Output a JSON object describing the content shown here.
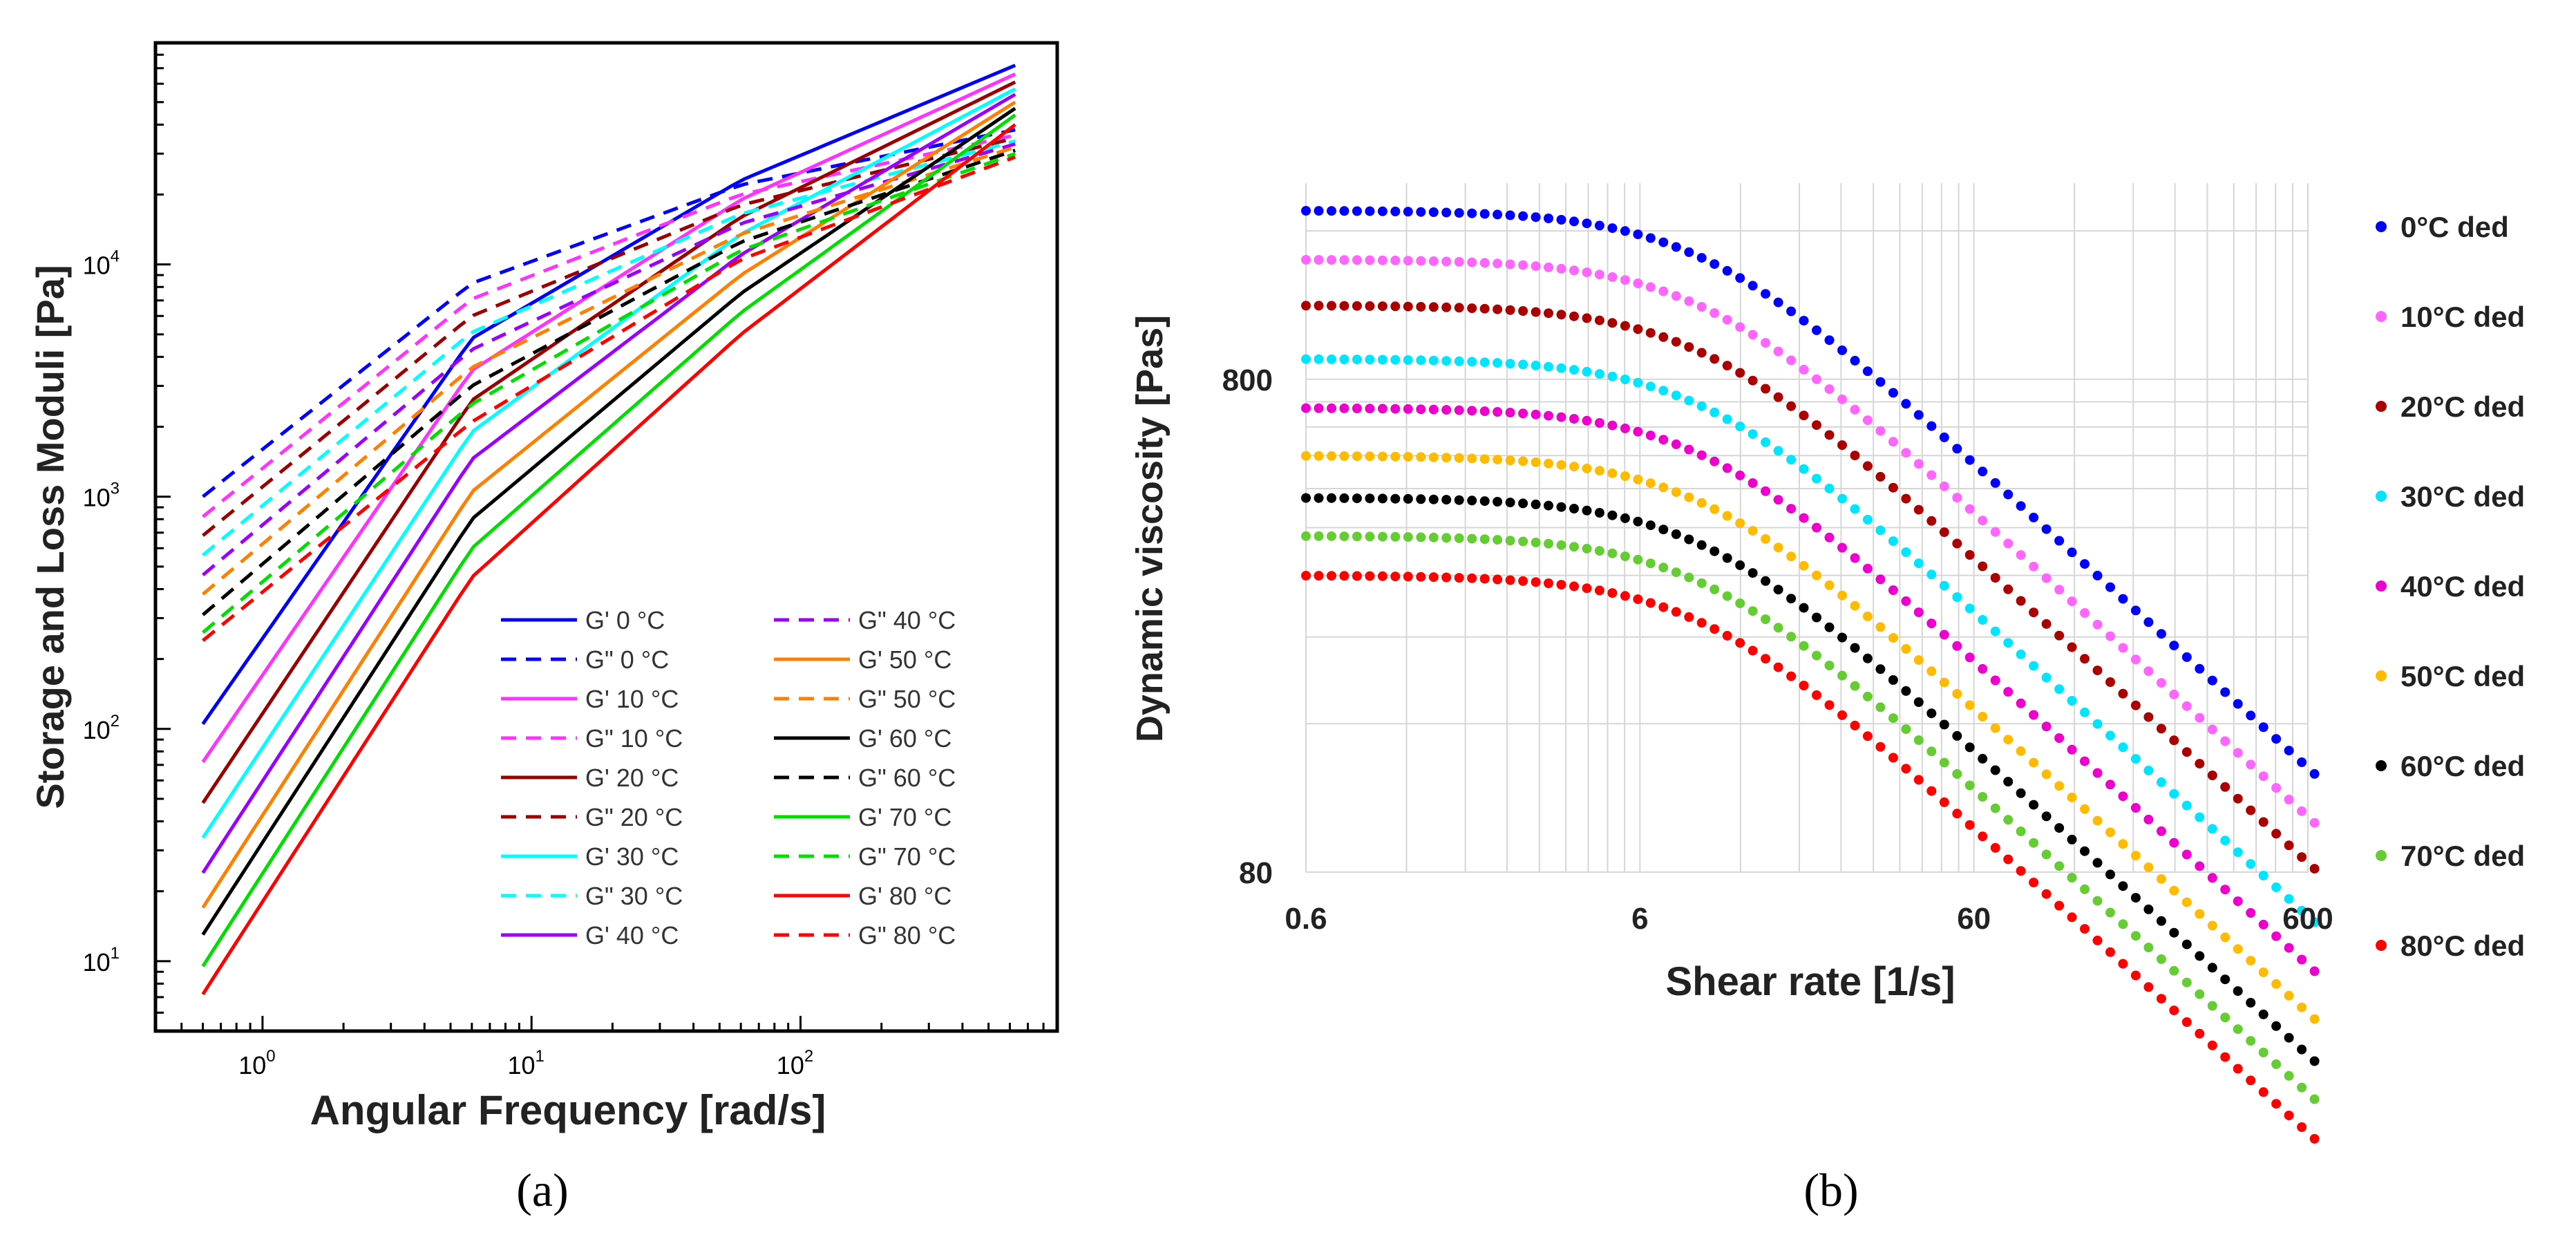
{
  "figure_labels": {
    "a": "(a)",
    "b": "(b)"
  },
  "chart_data": [
    {
      "id": "a",
      "type": "line",
      "scale": "log-log",
      "title": "",
      "xlabel": "Angular Frequency [rad/s]",
      "ylabel": "Storage and Loss Moduli [Pa]",
      "xlim": [
        0.4,
        900
      ],
      "ylim": [
        5,
        90000
      ],
      "x_ticks": [
        {
          "value": 1,
          "base": "10",
          "exp": "0"
        },
        {
          "value": 10,
          "base": "10",
          "exp": "1"
        },
        {
          "value": 100,
          "base": "10",
          "exp": "2"
        }
      ],
      "y_ticks": [
        {
          "value": 10,
          "base": "10",
          "exp": "1"
        },
        {
          "value": 100,
          "base": "10",
          "exp": "2"
        },
        {
          "value": 1000,
          "base": "10",
          "exp": "3"
        },
        {
          "value": 10000,
          "base": "10",
          "exp": "4"
        }
      ],
      "x_range": [
        0.6,
        628
      ],
      "legend_position": "inside-bottom-right",
      "series": [
        {
          "name": "G' 0 °C",
          "color": "#0000ff",
          "dash": false,
          "x": [
            0.6,
            6,
            60,
            628
          ],
          "y": [
            105,
            4800,
            23000,
            72000
          ]
        },
        {
          "name": "G\" 0 °C",
          "color": "#0000ff",
          "dash": true,
          "x": [
            0.6,
            6,
            60,
            628
          ],
          "y": [
            1000,
            8300,
            22000,
            38000
          ]
        },
        {
          "name": "G' 10 °C",
          "color": "#ff33ff",
          "dash": false,
          "x": [
            0.6,
            6,
            60,
            628
          ],
          "y": [
            72,
            3500,
            19000,
            66000
          ]
        },
        {
          "name": "G\" 10 °C",
          "color": "#ff33ff",
          "dash": true,
          "x": [
            0.6,
            6,
            60,
            628
          ],
          "y": [
            820,
            7100,
            20000,
            36000
          ]
        },
        {
          "name": "G' 20 °C",
          "color": "#990000",
          "dash": false,
          "x": [
            0.6,
            6,
            60,
            628
          ],
          "y": [
            48,
            2600,
            16000,
            61000
          ]
        },
        {
          "name": "G\" 20 °C",
          "color": "#990000",
          "dash": true,
          "x": [
            0.6,
            6,
            60,
            628
          ],
          "y": [
            680,
            6000,
            18000,
            35000
          ]
        },
        {
          "name": "G' 30 °C",
          "color": "#00ffff",
          "dash": false,
          "x": [
            0.6,
            6,
            60,
            628
          ],
          "y": [
            34,
            1900,
            13500,
            57000
          ]
        },
        {
          "name": "G\" 30 °C",
          "color": "#00ffff",
          "dash": true,
          "x": [
            0.6,
            6,
            60,
            628
          ],
          "y": [
            560,
            5100,
            16500,
            34000
          ]
        },
        {
          "name": "G' 40 °C",
          "color": "#9900ff",
          "dash": false,
          "x": [
            0.6,
            6,
            60,
            628
          ],
          "y": [
            24,
            1450,
            11000,
            54000
          ]
        },
        {
          "name": "G\" 40 °C",
          "color": "#9900ff",
          "dash": true,
          "x": [
            0.6,
            6,
            60,
            628
          ],
          "y": [
            460,
            4300,
            15000,
            33000
          ]
        },
        {
          "name": "G' 50 °C",
          "color": "#ff8000",
          "dash": false,
          "x": [
            0.6,
            6,
            60,
            628
          ],
          "y": [
            17,
            1050,
            9000,
            50000
          ]
        },
        {
          "name": "G\" 50 °C",
          "color": "#ff8000",
          "dash": true,
          "x": [
            0.6,
            6,
            60,
            628
          ],
          "y": [
            380,
            3600,
            13500,
            32000
          ]
        },
        {
          "name": "G' 60 °C",
          "color": "#000000",
          "dash": false,
          "x": [
            0.6,
            6,
            60,
            628
          ],
          "y": [
            13,
            800,
            7500,
            47000
          ]
        },
        {
          "name": "G\" 60 °C",
          "color": "#000000",
          "dash": true,
          "x": [
            0.6,
            6,
            60,
            628
          ],
          "y": [
            310,
            3000,
            12500,
            31000
          ]
        },
        {
          "name": "G' 70 °C",
          "color": "#00dd00",
          "dash": false,
          "x": [
            0.6,
            6,
            60,
            628
          ],
          "y": [
            9.5,
            600,
            6200,
            44000
          ]
        },
        {
          "name": "G\" 70 °C",
          "color": "#00dd00",
          "dash": true,
          "x": [
            0.6,
            6,
            60,
            628
          ],
          "y": [
            260,
            2500,
            11500,
            30000
          ]
        },
        {
          "name": "G' 80 °C",
          "color": "#ff0000",
          "dash": false,
          "x": [
            0.6,
            6,
            60,
            628
          ],
          "y": [
            7.2,
            450,
            5000,
            40000
          ]
        },
        {
          "name": "G\" 80 °C",
          "color": "#ff0000",
          "dash": true,
          "x": [
            0.6,
            6,
            60,
            628
          ],
          "y": [
            240,
            2100,
            10500,
            29000
          ]
        }
      ]
    },
    {
      "id": "b",
      "type": "scatter",
      "scale": "log-log",
      "title": "",
      "xlabel": "Shear rate [1/s]",
      "ylabel": "Dynamic viscosity [Pas]",
      "xlim": [
        0.6,
        600
      ],
      "ylim": [
        80,
        2000
      ],
      "x_ticks": [
        {
          "value": 0.6,
          "label": "0.6"
        },
        {
          "value": 6,
          "label": "6"
        },
        {
          "value": 60,
          "label": "60"
        },
        {
          "value": 600,
          "label": "600"
        }
      ],
      "y_ticks": [
        {
          "value": 80,
          "label": "80"
        },
        {
          "value": 800,
          "label": "800"
        }
      ],
      "grid": true,
      "x_range": [
        0.6,
        628
      ],
      "points_per_series": 80,
      "legend_position": "right",
      "series": [
        {
          "name": "0°C ded",
          "color": "#0000ff",
          "eta0": 1760,
          "slope": 0.62
        },
        {
          "name": "10°C ded",
          "color": "#ff66ff",
          "eta0": 1400,
          "slope": 0.62
        },
        {
          "name": "20°C ded",
          "color": "#aa0000",
          "eta0": 1130,
          "slope": 0.62
        },
        {
          "name": "30°C ded",
          "color": "#00e5ff",
          "eta0": 880,
          "slope": 0.62
        },
        {
          "name": "40°C ded",
          "color": "#ee00cc",
          "eta0": 700,
          "slope": 0.62
        },
        {
          "name": "50°C ded",
          "color": "#ffbb00",
          "eta0": 560,
          "slope": 0.62
        },
        {
          "name": "60°C ded",
          "color": "#000000",
          "eta0": 460,
          "slope": 0.62
        },
        {
          "name": "70°C ded",
          "color": "#66cc33",
          "eta0": 385,
          "slope": 0.62
        },
        {
          "name": "80°C ded",
          "color": "#ff0000",
          "eta0": 320,
          "slope": 0.62
        }
      ]
    }
  ]
}
